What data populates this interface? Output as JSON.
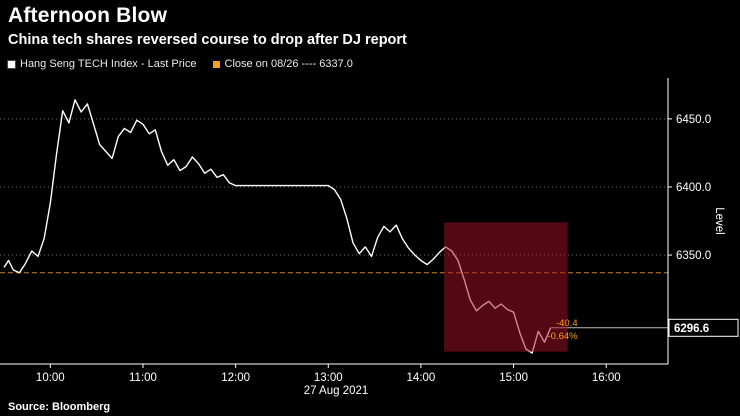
{
  "header": {
    "title": "Afternoon Blow",
    "subtitle": "China tech shares reversed course to drop after DJ report"
  },
  "legend": {
    "items": [
      {
        "label": "Hang Seng TECH Index - Last Price",
        "color": "#ffffff"
      },
      {
        "label": "Close on 08/26 ---- 6337.0",
        "color": "#f7a21a"
      }
    ]
  },
  "axis": {
    "ylabel": "Level",
    "date_label": "27 Aug 2021"
  },
  "last_price_label": "6296.6",
  "annotations": {
    "change": "-40.4",
    "change_pct": "-0.64%"
  },
  "source": "Source: Bloomberg",
  "colors": {
    "price_line": "#ffffff",
    "close_line": "#c8841a",
    "highlight": "#a31226",
    "annotation": "#f7a21a",
    "grid": "#6e6e6e",
    "axis": "#ffffff"
  },
  "chart_data": {
    "type": "line",
    "title": "Afternoon Blow",
    "subtitle": "China tech shares reversed course to drop after DJ report",
    "ylabel": "Level",
    "date": "27 Aug 2021",
    "ylim": [
      6270,
      6480
    ],
    "xlim": [
      "09:30",
      "16:40"
    ],
    "yticks": [
      {
        "value": 6350,
        "label": "6350.0"
      },
      {
        "value": 6400,
        "label": "6400.0"
      },
      {
        "value": 6450,
        "label": "6450.0"
      }
    ],
    "xticks": [
      "10:00",
      "11:00",
      "12:00",
      "13:00",
      "14:00",
      "15:00",
      "16:00"
    ],
    "reference_line": {
      "label": "Close on 08/26",
      "value": 6337.0
    },
    "highlight_region": {
      "x0": "14:15",
      "x1": "15:35",
      "y0": 6279,
      "y1": 6374
    },
    "last_price": 6296.6,
    "change": -40.4,
    "change_pct": -0.64,
    "legend_position": "top-left",
    "grid": true,
    "series": [
      {
        "name": "Hang Seng TECH Index - Last Price",
        "x": [
          "09:30",
          "09:33",
          "09:36",
          "09:40",
          "09:44",
          "09:48",
          "09:52",
          "09:56",
          "10:00",
          "10:04",
          "10:08",
          "10:12",
          "10:16",
          "10:20",
          "10:24",
          "10:28",
          "10:32",
          "10:36",
          "10:40",
          "10:44",
          "10:48",
          "10:52",
          "10:56",
          "11:00",
          "11:04",
          "11:08",
          "11:12",
          "11:16",
          "11:20",
          "11:24",
          "11:28",
          "11:32",
          "11:36",
          "11:40",
          "11:44",
          "11:48",
          "11:52",
          "11:56",
          "12:00",
          "12:30",
          "13:00",
          "13:04",
          "13:08",
          "13:12",
          "13:16",
          "13:20",
          "13:24",
          "13:28",
          "13:32",
          "13:36",
          "13:40",
          "13:44",
          "13:48",
          "13:52",
          "13:56",
          "14:00",
          "14:04",
          "14:08",
          "14:12",
          "14:16",
          "14:20",
          "14:24",
          "14:28",
          "14:32",
          "14:36",
          "14:40",
          "14:44",
          "14:48",
          "14:52",
          "14:56",
          "15:00",
          "15:04",
          "15:08",
          "15:12",
          "15:16",
          "15:20",
          "15:24"
        ],
        "values": [
          6341,
          6346,
          6339,
          6337,
          6344,
          6353,
          6349,
          6362,
          6388,
          6424,
          6456,
          6447,
          6464,
          6455,
          6461,
          6446,
          6431,
          6426,
          6421,
          6437,
          6443,
          6440,
          6449,
          6446,
          6439,
          6442,
          6426,
          6416,
          6420,
          6412,
          6415,
          6422,
          6417,
          6410,
          6413,
          6407,
          6409,
          6403,
          6401,
          6401,
          6401,
          6398,
          6391,
          6377,
          6359,
          6351,
          6356,
          6349,
          6363,
          6371,
          6367,
          6372,
          6362,
          6355,
          6350,
          6346,
          6343,
          6347,
          6352,
          6356,
          6353,
          6346,
          6332,
          6317,
          6309,
          6313,
          6316,
          6311,
          6314,
          6310,
          6308,
          6293,
          6281,
          6278,
          6294,
          6286,
          6296.6
        ]
      }
    ]
  }
}
